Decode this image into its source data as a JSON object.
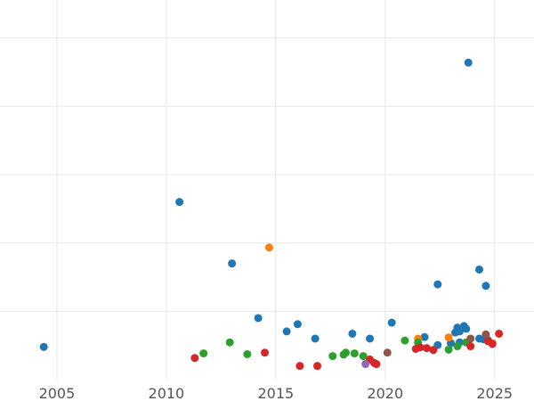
{
  "colors": {
    "blue": "#1f77b4",
    "orange": "#ff7f0e",
    "green": "#2ca02c",
    "red": "#d62728",
    "purple": "#9467bd",
    "brown": "#8c564b",
    "grid": "#e8e8e8",
    "tick_text": "#555555",
    "background": "#ffffff"
  },
  "chart_data": {
    "type": "scatter",
    "title": "",
    "xlabel": "",
    "ylabel": "",
    "xlim": [
      2002.4,
      2026.8
    ],
    "ylim": [
      0,
      1
    ],
    "x_ticks": [
      2005,
      2010,
      2015,
      2020,
      2025
    ],
    "x_tick_labels": [
      "2005",
      "2010",
      "2015",
      "2020",
      "2025"
    ],
    "y_gridlines": 5,
    "y_tick_labels_visible": false,
    "grid": true,
    "legend": "none",
    "series": [
      {
        "color": "blue",
        "points": [
          [
            2004.4,
            0.086
          ],
          [
            2010.6,
            0.468
          ],
          [
            2013.0,
            0.306
          ],
          [
            2014.2,
            0.162
          ],
          [
            2015.5,
            0.127
          ],
          [
            2016.0,
            0.146
          ],
          [
            2016.8,
            0.108
          ],
          [
            2018.5,
            0.121
          ],
          [
            2019.3,
            0.108
          ],
          [
            2020.3,
            0.15
          ],
          [
            2021.8,
            0.112
          ],
          [
            2022.4,
            0.251
          ],
          [
            2022.4,
            0.091
          ],
          [
            2023.2,
            0.124
          ],
          [
            2023.3,
            0.137
          ],
          [
            2023.4,
            0.127
          ],
          [
            2023.6,
            0.141
          ],
          [
            2023.7,
            0.134
          ],
          [
            2023.8,
            0.835
          ],
          [
            2024.3,
            0.29
          ],
          [
            2024.6,
            0.247
          ],
          [
            2024.3,
            0.108
          ],
          [
            2024.5,
            0.106
          ],
          [
            2024.7,
            0.104
          ],
          [
            2023.0,
            0.096
          ],
          [
            2023.4,
            0.098
          ]
        ]
      },
      {
        "color": "orange",
        "points": [
          [
            2014.7,
            0.348
          ],
          [
            2021.5,
            0.108
          ],
          [
            2022.9,
            0.111
          ],
          [
            2024.9,
            0.096
          ]
        ]
      },
      {
        "color": "green",
        "points": [
          [
            2011.7,
            0.069
          ],
          [
            2012.9,
            0.098
          ],
          [
            2013.7,
            0.067
          ],
          [
            2017.6,
            0.062
          ],
          [
            2018.1,
            0.066
          ],
          [
            2018.2,
            0.071
          ],
          [
            2018.6,
            0.069
          ],
          [
            2019.0,
            0.062
          ],
          [
            2020.9,
            0.103
          ],
          [
            2021.5,
            0.098
          ],
          [
            2022.9,
            0.079
          ],
          [
            2023.3,
            0.088
          ],
          [
            2023.7,
            0.098
          ]
        ]
      },
      {
        "color": "red",
        "points": [
          [
            2011.3,
            0.057
          ],
          [
            2014.5,
            0.071
          ],
          [
            2016.1,
            0.036
          ],
          [
            2016.9,
            0.036
          ],
          [
            2019.3,
            0.053
          ],
          [
            2019.5,
            0.044
          ],
          [
            2019.6,
            0.041
          ],
          [
            2021.4,
            0.081
          ],
          [
            2021.6,
            0.085
          ],
          [
            2021.9,
            0.083
          ],
          [
            2022.2,
            0.078
          ],
          [
            2023.9,
            0.088
          ],
          [
            2024.7,
            0.101
          ],
          [
            2024.9,
            0.094
          ],
          [
            2025.2,
            0.121
          ]
        ]
      },
      {
        "color": "purple",
        "points": [
          [
            2019.1,
            0.041
          ]
        ]
      },
      {
        "color": "brown",
        "points": [
          [
            2020.1,
            0.071
          ],
          [
            2023.9,
            0.108
          ],
          [
            2024.6,
            0.119
          ]
        ]
      }
    ]
  }
}
